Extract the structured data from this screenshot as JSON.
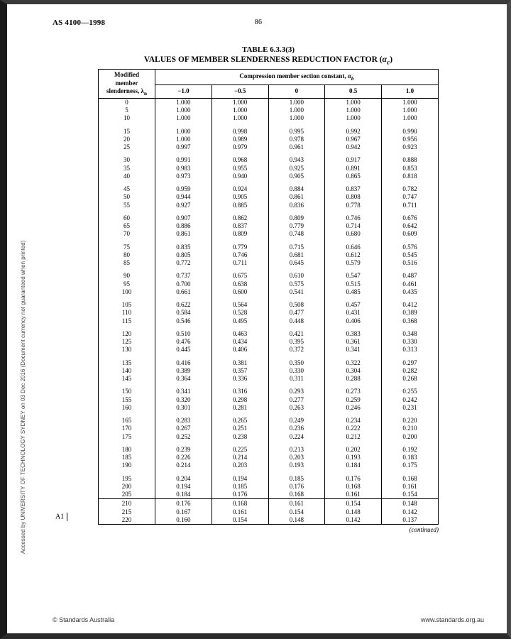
{
  "doc_code": "AS 4100—1998",
  "page_number": "86",
  "table_number": "TABLE   6.3.3(3)",
  "table_title_prefix": "VALUES OF MEMBER SLENDERNESS REDUCTION FACTOR (",
  "table_title_symbol": "α",
  "table_title_sub": "c",
  "table_title_suffix": ")",
  "col_header_left_l1": "Modified",
  "col_header_left_l2": "member",
  "col_header_left_l3": "slenderness, λ",
  "col_header_left_sub": "n",
  "col_header_span_prefix": "Compression member section constant, ",
  "col_header_span_symbol": "α",
  "col_header_span_sub": "b",
  "column_values": [
    "−1.0",
    "−0.5",
    "0",
    "0.5",
    "1.0"
  ],
  "groups": [
    [
      [
        "0",
        "1.000",
        "1.000",
        "1.000",
        "1.000",
        "1.000"
      ],
      [
        "5",
        "1.000",
        "1.000",
        "1.000",
        "1.000",
        "1.000"
      ],
      [
        "10",
        "1.000",
        "1.000",
        "1.000",
        "1.000",
        "1.000"
      ]
    ],
    [
      [
        "15",
        "1.000",
        "0.998",
        "0.995",
        "0.992",
        "0.990"
      ],
      [
        "20",
        "1.000",
        "0.989",
        "0.978",
        "0.967",
        "0.956"
      ],
      [
        "25",
        "0.997",
        "0.979",
        "0.961",
        "0.942",
        "0.923"
      ]
    ],
    [
      [
        "30",
        "0.991",
        "0.968",
        "0.943",
        "0.917",
        "0.888"
      ],
      [
        "35",
        "0.983",
        "0.955",
        "0.925",
        "0.891",
        "0.853"
      ],
      [
        "40",
        "0.973",
        "0.940",
        "0.905",
        "0.865",
        "0.818"
      ]
    ],
    [
      [
        "45",
        "0.959",
        "0.924",
        "0.884",
        "0.837",
        "0.782"
      ],
      [
        "50",
        "0.944",
        "0.905",
        "0.861",
        "0.808",
        "0.747"
      ],
      [
        "55",
        "0.927",
        "0.885",
        "0.836",
        "0.778",
        "0.711"
      ]
    ],
    [
      [
        "60",
        "0.907",
        "0.862",
        "0.809",
        "0.746",
        "0.676"
      ],
      [
        "65",
        "0.886",
        "0.837",
        "0.779",
        "0.714",
        "0.642"
      ],
      [
        "70",
        "0.861",
        "0.809",
        "0.748",
        "0.680",
        "0.609"
      ]
    ],
    [
      [
        "75",
        "0.835",
        "0.779",
        "0.715",
        "0.646",
        "0.576"
      ],
      [
        "80",
        "0.805",
        "0.746",
        "0.681",
        "0.612",
        "0.545"
      ],
      [
        "85",
        "0.772",
        "0.711",
        "0.645",
        "0.579",
        "0.516"
      ]
    ],
    [
      [
        "90",
        "0.737",
        "0.675",
        "0.610",
        "0.547",
        "0.487"
      ],
      [
        "95",
        "0.700",
        "0.638",
        "0.575",
        "0.515",
        "0.461"
      ],
      [
        "100",
        "0.661",
        "0.600",
        "0.541",
        "0.485",
        "0.435"
      ]
    ],
    [
      [
        "105",
        "0.622",
        "0.564",
        "0.508",
        "0.457",
        "0.412"
      ],
      [
        "110",
        "0.584",
        "0.528",
        "0.477",
        "0.431",
        "0.389"
      ],
      [
        "115",
        "0.546",
        "0.495",
        "0.448",
        "0.406",
        "0.368"
      ]
    ],
    [
      [
        "120",
        "0.510",
        "0.463",
        "0.421",
        "0.383",
        "0.348"
      ],
      [
        "125",
        "0.476",
        "0.434",
        "0.395",
        "0.361",
        "0.330"
      ],
      [
        "130",
        "0.445",
        "0.406",
        "0.372",
        "0.341",
        "0.313"
      ]
    ],
    [
      [
        "135",
        "0.416",
        "0.381",
        "0.350",
        "0.322",
        "0.297"
      ],
      [
        "140",
        "0.389",
        "0.357",
        "0.330",
        "0.304",
        "0.282"
      ],
      [
        "145",
        "0.364",
        "0.336",
        "0.311",
        "0.288",
        "0.268"
      ]
    ],
    [
      [
        "150",
        "0.341",
        "0.316",
        "0.293",
        "0.273",
        "0.255"
      ],
      [
        "155",
        "0.320",
        "0.298",
        "0.277",
        "0.259",
        "0.242"
      ],
      [
        "160",
        "0.301",
        "0.281",
        "0.263",
        "0.246",
        "0.231"
      ]
    ],
    [
      [
        "165",
        "0.283",
        "0.265",
        "0.249",
        "0.234",
        "0.220"
      ],
      [
        "170",
        "0.267",
        "0.251",
        "0.236",
        "0.222",
        "0.210"
      ],
      [
        "175",
        "0.252",
        "0.238",
        "0.224",
        "0.212",
        "0.200"
      ]
    ],
    [
      [
        "180",
        "0.239",
        "0.225",
        "0.213",
        "0.202",
        "0.192"
      ],
      [
        "185",
        "0.226",
        "0.214",
        "0.203",
        "0.193",
        "0.183"
      ],
      [
        "190",
        "0.214",
        "0.203",
        "0.193",
        "0.184",
        "0.175"
      ]
    ],
    [
      [
        "195",
        "0.204",
        "0.194",
        "0.185",
        "0.176",
        "0.168"
      ],
      [
        "200",
        "0.194",
        "0.185",
        "0.176",
        "0.168",
        "0.161"
      ],
      [
        "205",
        "0.184",
        "0.176",
        "0.168",
        "0.161",
        "0.154"
      ]
    ],
    [
      [
        "210",
        "0.176",
        "0.168",
        "0.161",
        "0.154",
        "0.148"
      ],
      [
        "215",
        "0.167",
        "0.161",
        "0.154",
        "0.148",
        "0.142"
      ],
      [
        "220",
        "0.160",
        "0.154",
        "0.148",
        "0.142",
        "0.137"
      ]
    ]
  ],
  "separators_after_group_index": [
    13
  ],
  "continued_label": "(continued)",
  "side_note": "Accessed by UNIVERSITY OF TECHNOLOGY SYDNEY on 03 Dec 2016 (Document currency not guaranteed when printed)",
  "footer_left": "Standards Australia",
  "footer_right": "www.standards.org.au",
  "revision_mark": "A1"
}
